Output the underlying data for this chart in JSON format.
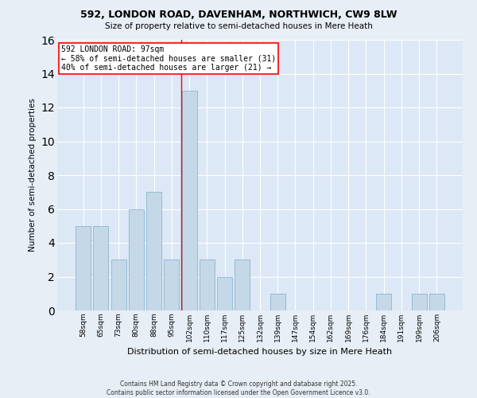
{
  "title": "592, LONDON ROAD, DAVENHAM, NORTHWICH, CW9 8LW",
  "subtitle": "Size of property relative to semi-detached houses in Mere Heath",
  "xlabel": "Distribution of semi-detached houses by size in Mere Heath",
  "ylabel": "Number of semi-detached properties",
  "categories": [
    "58sqm",
    "65sqm",
    "73sqm",
    "80sqm",
    "88sqm",
    "95sqm",
    "102sqm",
    "110sqm",
    "117sqm",
    "125sqm",
    "132sqm",
    "139sqm",
    "147sqm",
    "154sqm",
    "162sqm",
    "169sqm",
    "176sqm",
    "184sqm",
    "191sqm",
    "199sqm",
    "206sqm"
  ],
  "values": [
    5,
    5,
    3,
    6,
    7,
    3,
    13,
    3,
    2,
    3,
    0,
    1,
    0,
    0,
    0,
    0,
    0,
    1,
    0,
    1,
    1
  ],
  "bar_color": "#c5d8e8",
  "bar_edge_color": "#7aaec8",
  "property_label": "592 LONDON ROAD: 97sqm",
  "pct_smaller": 58,
  "pct_smaller_n": 31,
  "pct_larger": 40,
  "pct_larger_n": 21,
  "red_line_x": 5.57,
  "ylim": [
    0,
    16
  ],
  "yticks": [
    0,
    2,
    4,
    6,
    8,
    10,
    12,
    14,
    16
  ],
  "bg_color": "#e8eef5",
  "plot_bg_color": "#dce8f5",
  "footer": "Contains HM Land Registry data © Crown copyright and database right 2025.\nContains public sector information licensed under the Open Government Licence v3.0."
}
